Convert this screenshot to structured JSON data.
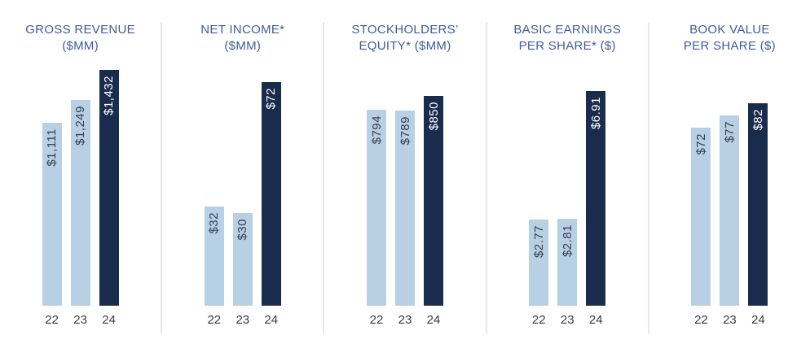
{
  "page": {
    "background": "#ffffff"
  },
  "colors": {
    "light_bar": "#b7d0e4",
    "dark_bar": "#1a2c4e",
    "title": "#3e5c9e",
    "value_on_light": "#37404e",
    "value_on_dark": "#ffffff",
    "year_label": "#3b3b3b",
    "divider": "#e7e7e7"
  },
  "chart_data": [
    {
      "type": "bar",
      "title": "GROSS REVENUE ($MM)",
      "title_lines": [
        "GROSS REVENUE",
        "($MM)"
      ],
      "categories": [
        "22",
        "23",
        "24"
      ],
      "values": [
        1111,
        1249,
        1432
      ],
      "value_labels": [
        "$1,111",
        "$1,249",
        "$1,432"
      ],
      "bar_styles": [
        "light",
        "light",
        "dark"
      ],
      "ymax": 1432,
      "grid": false,
      "legend": "none"
    },
    {
      "type": "bar",
      "title": "NET INCOME* ($MM)",
      "title_lines": [
        "NET INCOME*",
        "($MM)"
      ],
      "categories": [
        "22",
        "23",
        "24"
      ],
      "values": [
        32,
        30,
        72
      ],
      "value_labels": [
        "$32",
        "$30",
        "$72"
      ],
      "bar_styles": [
        "light",
        "light",
        "dark"
      ],
      "ymax": 76,
      "grid": false,
      "legend": "none"
    },
    {
      "type": "bar",
      "title": "STOCKHOLDERS’ EQUITY* ($MM)",
      "title_lines": [
        "STOCKHOLDERS’",
        "EQUITY* ($MM)"
      ],
      "categories": [
        "22",
        "23",
        "24"
      ],
      "values": [
        794,
        789,
        850
      ],
      "value_labels": [
        "$794",
        "$789",
        "$850"
      ],
      "bar_styles": [
        "light",
        "light",
        "dark"
      ],
      "ymax": 955,
      "grid": false,
      "legend": "none"
    },
    {
      "type": "bar",
      "title": "BASIC EARNINGS PER SHARE* ($)",
      "title_lines": [
        "BASIC EARNINGS",
        "PER SHARE* ($)"
      ],
      "categories": [
        "22",
        "23",
        "24"
      ],
      "values": [
        2.77,
        2.81,
        6.91
      ],
      "value_labels": [
        "$2.77",
        "$2.81",
        "$6.91"
      ],
      "bar_styles": [
        "light",
        "light",
        "dark"
      ],
      "ymax": 7.6,
      "grid": false,
      "legend": "none"
    },
    {
      "type": "bar",
      "title": "BOOK VALUE PER SHARE ($)",
      "title_lines": [
        "BOOK VALUE",
        "PER SHARE ($)"
      ],
      "categories": [
        "22",
        "23",
        "24"
      ],
      "values": [
        72,
        77,
        82
      ],
      "value_labels": [
        "$72",
        "$77",
        "$82"
      ],
      "bar_styles": [
        "light",
        "light",
        "dark"
      ],
      "ymax": 95.5,
      "grid": false,
      "legend": "none"
    }
  ]
}
